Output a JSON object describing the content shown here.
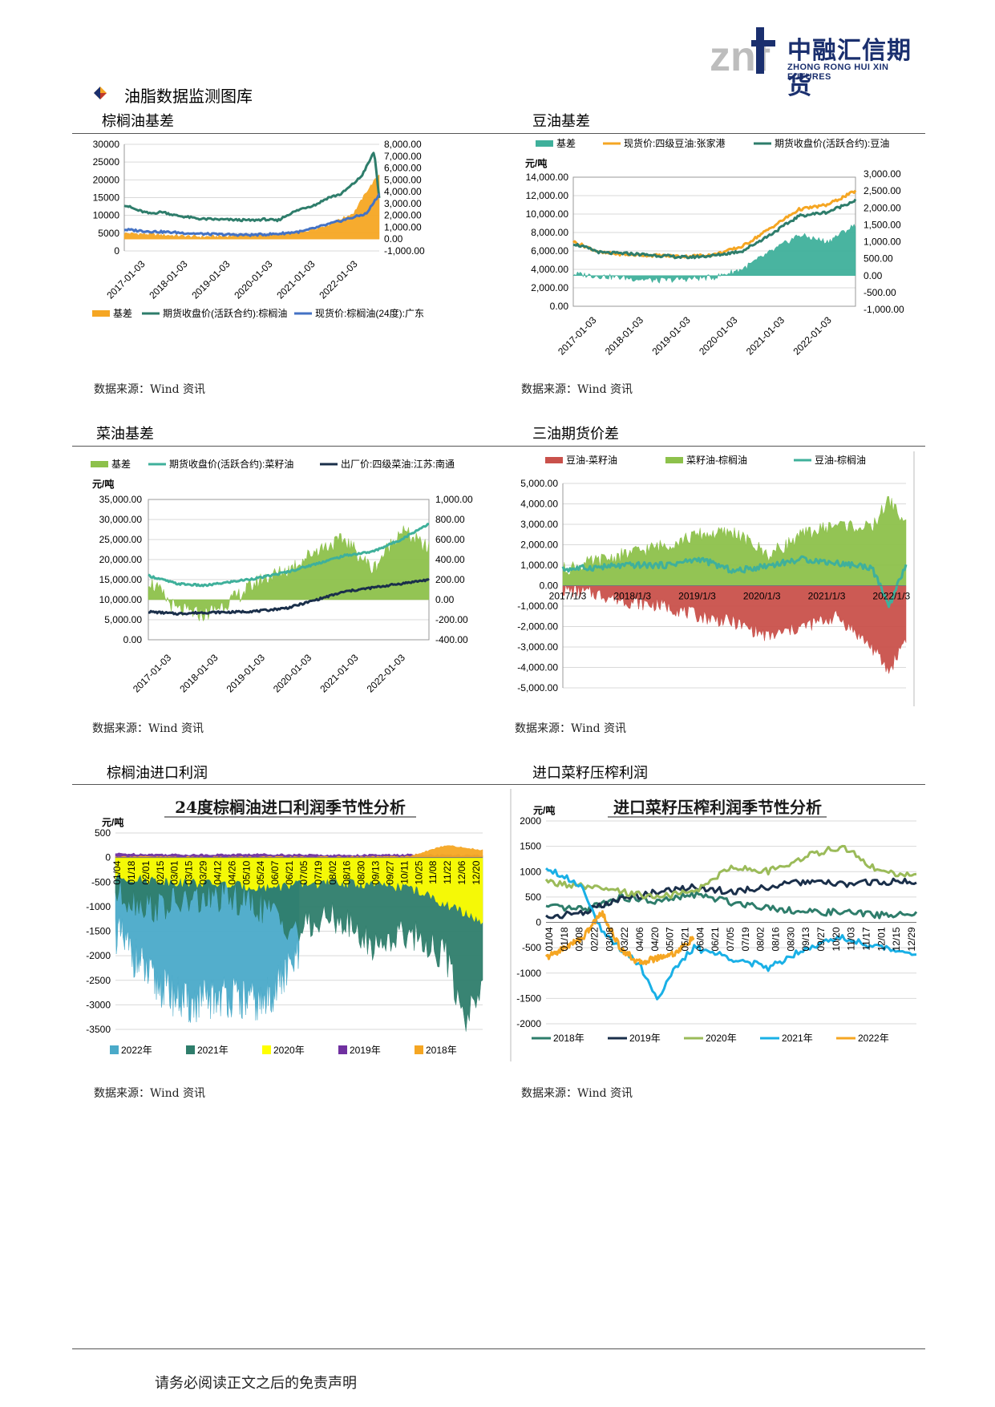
{
  "logo": {
    "cn": "中融汇信期货",
    "en": "ZHONG RONG HUI XIN FUTURES",
    "mark": "znf"
  },
  "section_title": "油脂数据监测图库",
  "footer": "请务必阅读正文之后的免责声明",
  "panels": [
    {
      "title": "棕榈油基差",
      "source": "数据来源：Wind 资讯"
    },
    {
      "title": "豆油基差",
      "source": "数据来源：Wind 资讯"
    },
    {
      "title": "菜油基差",
      "source": "数据来源：Wind 资讯"
    },
    {
      "title": "三油期货价差",
      "source": "数据来源：Wind 资讯"
    },
    {
      "title": "棕榈油进口利润",
      "source": "数据来源：Wind 资讯"
    },
    {
      "title": "进口菜籽压榨利润",
      "source": "数据来源：Wind 资讯"
    }
  ],
  "chart_data": [
    {
      "type": "line",
      "x_ticks": [
        "2017-01-03",
        "2018-01-03",
        "2019-01-03",
        "2020-01-03",
        "2021-01-03",
        "2022-01-03"
      ],
      "y_left_ticks": [
        "30000",
        "25000",
        "20000",
        "15000",
        "10000",
        "5000",
        "0"
      ],
      "y_right_ticks": [
        "8,000.00",
        "7,000.00",
        "6,000.00",
        "5,000.00",
        "4,000.00",
        "3,000.00",
        "2,000.00",
        "1,000.00",
        "0.00",
        "-1,000.00"
      ],
      "ylim_left": [
        0,
        30000
      ],
      "ylim_right": [
        -1000,
        8000
      ],
      "series": [
        {
          "name": "基差",
          "axis": "right",
          "kind": "area",
          "color": "#f5a623",
          "x": [
            0,
            0.1,
            0.2,
            0.3,
            0.4,
            0.5,
            0.6,
            0.7,
            0.8,
            0.9,
            0.95,
            1.0
          ],
          "values": [
            500,
            400,
            300,
            200,
            250,
            350,
            400,
            600,
            1200,
            2200,
            4000,
            5500
          ]
        },
        {
          "name": "期货收盘价(活跃合约):棕榈油",
          "axis": "left",
          "kind": "line",
          "color": "#2e7d6b",
          "x": [
            0,
            0.05,
            0.1,
            0.15,
            0.2,
            0.3,
            0.4,
            0.5,
            0.55,
            0.6,
            0.65,
            0.7,
            0.75,
            0.8,
            0.85,
            0.9,
            0.93,
            0.96,
            0.98,
            1.0
          ],
          "values": [
            13000,
            11500,
            10500,
            11000,
            10000,
            9000,
            8800,
            8600,
            8900,
            8500,
            10500,
            12000,
            13000,
            15000,
            16000,
            19000,
            21000,
            25000,
            28000,
            15000
          ]
        },
        {
          "name": "现货价:棕榈油(24度):广东",
          "axis": "left",
          "kind": "line",
          "color": "#4472c4",
          "x": [
            0,
            0.1,
            0.2,
            0.3,
            0.4,
            0.5,
            0.6,
            0.7,
            0.8,
            0.9,
            0.95,
            1.0
          ],
          "values": [
            6000,
            5500,
            5200,
            4800,
            4600,
            4500,
            4800,
            5500,
            7500,
            9500,
            10500,
            16000
          ]
        }
      ]
    },
    {
      "type": "line",
      "unit": "元/吨",
      "x_ticks": [
        "2017-01-03",
        "2018-01-03",
        "2019-01-03",
        "2020-01-03",
        "2021-01-03",
        "2022-01-03"
      ],
      "y_left_ticks": [
        "14,000.00",
        "12,000.00",
        "10,000.00",
        "8,000.00",
        "6,000.00",
        "4,000.00",
        "2,000.00",
        "0.00"
      ],
      "y_right_ticks": [
        "3,000.00",
        "2,500.00",
        "2,000.00",
        "1,500.00",
        "1,000.00",
        "500.00",
        "0.00",
        "-500.00",
        "-1,000.00"
      ],
      "ylim_left": [
        0,
        14000
      ],
      "ylim_right": [
        -1000,
        3000
      ],
      "series": [
        {
          "name": "基差",
          "axis": "right",
          "kind": "area",
          "color": "#3fb09b",
          "x": [
            0,
            0.1,
            0.2,
            0.3,
            0.4,
            0.5,
            0.6,
            0.7,
            0.8,
            0.9,
            1.0
          ],
          "values": [
            50,
            -20,
            -80,
            -150,
            -100,
            -50,
            200,
            700,
            1200,
            1000,
            1500
          ]
        },
        {
          "name": "现货价:四级豆油:张家港",
          "axis": "left",
          "kind": "line",
          "color": "#f5a623",
          "x": [
            0,
            0.1,
            0.2,
            0.3,
            0.4,
            0.5,
            0.6,
            0.7,
            0.8,
            0.9,
            1.0
          ],
          "values": [
            7000,
            5800,
            5600,
            5500,
            5400,
            5600,
            6500,
            8500,
            10500,
            11000,
            12500
          ]
        },
        {
          "name": "期货收盘价(活跃合约):豆油",
          "axis": "left",
          "kind": "line",
          "color": "#2e7d6b",
          "x": [
            0,
            0.1,
            0.2,
            0.3,
            0.4,
            0.5,
            0.6,
            0.7,
            0.8,
            0.9,
            1.0
          ],
          "values": [
            6800,
            5800,
            5700,
            5500,
            5300,
            5500,
            6000,
            7800,
            9800,
            10200,
            11500
          ]
        }
      ]
    },
    {
      "type": "line",
      "unit": "元/吨",
      "x_ticks": [
        "2017-01-03",
        "2018-01-03",
        "2019-01-03",
        "2020-01-03",
        "2021-01-03",
        "2022-01-03"
      ],
      "y_left_ticks": [
        "35,000.00",
        "30,000.00",
        "25,000.00",
        "20,000.00",
        "15,000.00",
        "10,000.00",
        "5,000.00",
        "0.00"
      ],
      "y_right_ticks": [
        "1,000.00",
        "800.00",
        "600.00",
        "400.00",
        "200.00",
        "0.00",
        "-200.00",
        "-400.00"
      ],
      "ylim_left": [
        0,
        35000
      ],
      "ylim_right": [
        -400,
        1000
      ],
      "series": [
        {
          "name": "基差",
          "axis": "right",
          "kind": "area",
          "color": "#8dc14b",
          "x": [
            0,
            0.1,
            0.2,
            0.3,
            0.4,
            0.5,
            0.6,
            0.7,
            0.8,
            0.9,
            1.0
          ],
          "values": [
            200,
            -100,
            -150,
            0,
            200,
            300,
            500,
            600,
            300,
            700,
            500
          ]
        },
        {
          "name": "期货收盘价(活跃合约):菜籽油",
          "axis": "left",
          "kind": "line",
          "color": "#3fb09b",
          "x": [
            0,
            0.1,
            0.2,
            0.3,
            0.4,
            0.5,
            0.6,
            0.7,
            0.8,
            0.9,
            1.0
          ],
          "values": [
            16000,
            14000,
            13500,
            14500,
            15500,
            17000,
            19000,
            21000,
            22000,
            25000,
            29000
          ]
        },
        {
          "name": "出厂价:四级菜油:江苏:南通",
          "axis": "left",
          "kind": "line",
          "color": "#1a2f4a",
          "x": [
            0,
            0.1,
            0.2,
            0.3,
            0.4,
            0.5,
            0.6,
            0.7,
            0.8,
            0.9,
            1.0
          ],
          "values": [
            7000,
            6500,
            6800,
            6900,
            7200,
            8000,
            10000,
            12000,
            13000,
            14000,
            15000
          ]
        }
      ]
    },
    {
      "type": "area",
      "x_ticks": [
        "2017/1/3",
        "2018/1/3",
        "2019/1/3",
        "2020/1/3",
        "2021/1/3",
        "2022/1/3"
      ],
      "y_ticks": [
        "5,000.00",
        "4,000.00",
        "3,000.00",
        "2,000.00",
        "1,000.00",
        "0.00",
        "-1,000.00",
        "-2,000.00",
        "-3,000.00",
        "-4,000.00",
        "-5,000.00"
      ],
      "ylim": [
        -5000,
        5000
      ],
      "series": [
        {
          "name": "豆油-菜籽油",
          "kind": "area",
          "color": "#c9514b",
          "x": [
            0,
            0.1,
            0.2,
            0.3,
            0.4,
            0.5,
            0.6,
            0.7,
            0.8,
            0.9,
            0.95,
            1.0
          ],
          "values": [
            -200,
            -400,
            -800,
            -1000,
            -1500,
            -1800,
            -2500,
            -2000,
            -1500,
            -3000,
            -4200,
            -2500
          ]
        },
        {
          "name": "菜籽油-棕榈油",
          "kind": "area",
          "color": "#8dc14b",
          "x": [
            0,
            0.1,
            0.2,
            0.3,
            0.4,
            0.5,
            0.6,
            0.7,
            0.8,
            0.9,
            0.95,
            1.0
          ],
          "values": [
            800,
            1200,
            1600,
            2000,
            2500,
            2600,
            1500,
            2500,
            3000,
            2800,
            4200,
            3000
          ]
        },
        {
          "name": "豆油-棕榈油",
          "kind": "line",
          "color": "#3fb09b",
          "x": [
            0,
            0.1,
            0.2,
            0.3,
            0.4,
            0.5,
            0.6,
            0.7,
            0.8,
            0.9,
            0.95,
            1.0
          ],
          "values": [
            800,
            900,
            1000,
            1000,
            1300,
            700,
            1000,
            1300,
            1100,
            900,
            -1000,
            1000
          ]
        }
      ]
    },
    {
      "type": "area",
      "title": "24度棕榈油进口利润季节性分析",
      "unit": "元/吨",
      "x_ticks": [
        "01/04",
        "01/18",
        "02/01",
        "02/15",
        "03/01",
        "03/15",
        "03/29",
        "04/12",
        "04/26",
        "05/10",
        "05/24",
        "06/07",
        "06/21",
        "07/05",
        "07/19",
        "08/02",
        "08/16",
        "08/30",
        "09/13",
        "09/27",
        "10/11",
        "10/25",
        "11/08",
        "11/22",
        "12/06",
        "12/20"
      ],
      "y_ticks": [
        "500",
        "0",
        "-500",
        "-1000",
        "-1500",
        "-2000",
        "-2500",
        "-3000",
        "-3500"
      ],
      "ylim": [
        -3500,
        500
      ],
      "series": [
        {
          "name": "2022年",
          "color": "#4aaac9",
          "x": [
            0,
            0.1,
            0.2,
            0.3,
            0.4,
            0.5
          ],
          "values": [
            -1500,
            -2500,
            -3000,
            -2800,
            -3000,
            -2000
          ]
        },
        {
          "name": "2021年",
          "color": "#2e7d6b",
          "x": [
            0,
            0.1,
            0.2,
            0.3,
            0.4,
            0.5,
            0.6,
            0.7,
            0.8,
            0.9,
            0.95,
            1.0
          ],
          "values": [
            -700,
            -1000,
            -900,
            -800,
            -1000,
            -1500,
            -1200,
            -1800,
            -1500,
            -2000,
            -3300,
            -2500
          ]
        },
        {
          "name": "2020年",
          "color": "#ffff00",
          "x": [
            0,
            0.2,
            0.4,
            0.6,
            0.8,
            1.0
          ],
          "values": [
            -400,
            -500,
            -600,
            -500,
            -600,
            -1300
          ]
        },
        {
          "name": "2019年",
          "color": "#7030a0",
          "x": [
            0,
            0.2,
            0.4,
            0.6,
            0.8,
            1.0
          ],
          "values": [
            80,
            60,
            70,
            50,
            60,
            40
          ]
        },
        {
          "name": "2018年",
          "color": "#f5a623",
          "x": [
            0,
            0.2,
            0.4,
            0.6,
            0.8,
            0.9,
            1.0
          ],
          "values": [
            20,
            10,
            10,
            10,
            20,
            250,
            150
          ]
        }
      ]
    },
    {
      "type": "line",
      "title": "进口菜籽压榨利润季节性分析",
      "unit": "元/吨",
      "x_ticks": [
        "01/04",
        "01/18",
        "02/08",
        "02/22",
        "03/08",
        "03/22",
        "04/06",
        "04/20",
        "05/07",
        "05/21",
        "06/04",
        "06/21",
        "07/05",
        "07/19",
        "08/02",
        "08/16",
        "08/30",
        "09/13",
        "09/27",
        "10/20",
        "11/03",
        "11/17",
        "12/01",
        "12/15",
        "12/29"
      ],
      "y_ticks": [
        "2000",
        "1500",
        "1000",
        "500",
        "0",
        "-500",
        "-1000",
        "-1500",
        "-2000"
      ],
      "ylim": [
        -2000,
        2000
      ],
      "series": [
        {
          "name": "2018年",
          "color": "#2e7d6b",
          "x": [
            0,
            0.1,
            0.2,
            0.3,
            0.4,
            0.5,
            0.6,
            0.7,
            0.8,
            0.9,
            1.0
          ],
          "values": [
            300,
            250,
            500,
            400,
            550,
            400,
            300,
            200,
            200,
            150,
            150
          ]
        },
        {
          "name": "2019年",
          "color": "#1a2f4a",
          "x": [
            0,
            0.1,
            0.2,
            0.3,
            0.4,
            0.5,
            0.6,
            0.7,
            0.8,
            0.9,
            1.0
          ],
          "values": [
            100,
            200,
            450,
            600,
            700,
            600,
            700,
            800,
            750,
            800,
            800
          ]
        },
        {
          "name": "2020年",
          "color": "#9bbb59",
          "x": [
            0,
            0.1,
            0.2,
            0.3,
            0.4,
            0.5,
            0.6,
            0.7,
            0.8,
            0.9,
            1.0
          ],
          "values": [
            800,
            700,
            600,
            500,
            600,
            1100,
            1000,
            1300,
            1500,
            1000,
            900
          ]
        },
        {
          "name": "2021年",
          "color": "#1ab0e6",
          "x": [
            0,
            0.05,
            0.1,
            0.15,
            0.2,
            0.25,
            0.3,
            0.35,
            0.4,
            0.5,
            0.6,
            0.7,
            0.8,
            0.9,
            1.0
          ],
          "values": [
            1100,
            900,
            700,
            -200,
            -500,
            -800,
            -1500,
            -900,
            -500,
            -700,
            -900,
            -500,
            -300,
            -500,
            -600
          ]
        },
        {
          "name": "2022年",
          "color": "#f5a623",
          "x": [
            0,
            0.05,
            0.1,
            0.15,
            0.2,
            0.25,
            0.3,
            0.35,
            0.4
          ],
          "values": [
            -700,
            -500,
            -300,
            200,
            -500,
            -800,
            -700,
            -600,
            -300
          ]
        }
      ]
    }
  ]
}
